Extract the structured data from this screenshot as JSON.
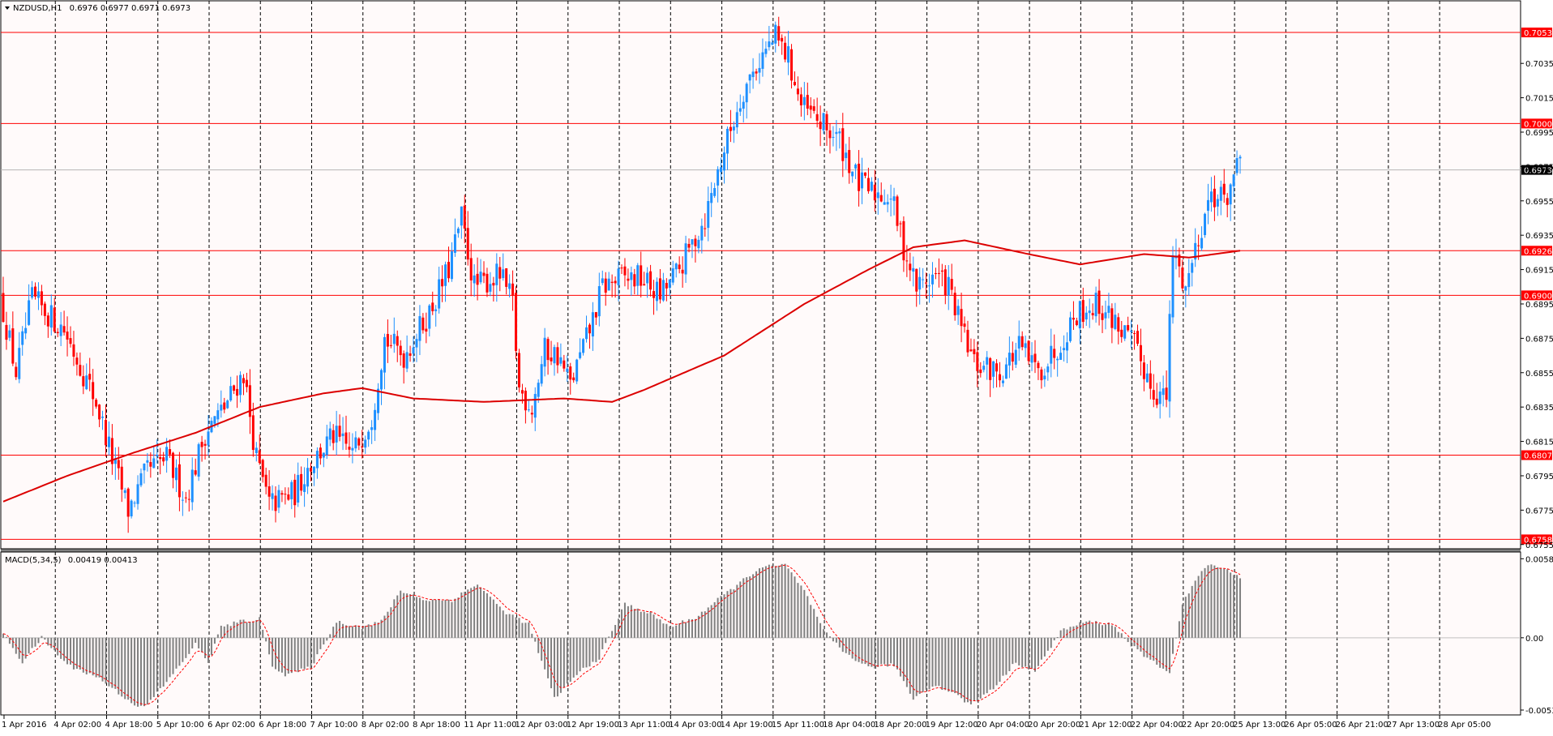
{
  "header": {
    "symbol": "NZDUSD,H1",
    "ohlc": "0.6976 0.6977 0.6971 0.6973"
  },
  "macd_header": {
    "label": "MACD(5,34,5)",
    "values": "0.00419 0.00413"
  },
  "colors": {
    "background": "#fffafa",
    "bull_candle": "#1e90ff",
    "bear_candle": "#ff0000",
    "moving_average": "#dc0000",
    "level_line": "#ff0000",
    "grid": "#000000",
    "histogram": "#808080",
    "signal_line": "#ff0000"
  },
  "chart_data": [
    {
      "type": "candlestick",
      "name": "price",
      "symbol": "NZDUSD",
      "timeframe": "H1",
      "ylim": [
        0.6753,
        0.707
      ],
      "y_ticks": [
        "0.7035",
        "0.7015",
        "0.6995",
        "0.6975",
        "0.6955",
        "0.6935",
        "0.6915",
        "0.6895",
        "0.6875",
        "0.6855",
        "0.6835",
        "0.6815",
        "0.6795",
        "0.6775",
        "0.6755"
      ],
      "x_labels": [
        "1 Apr 2016",
        "4 Apr 02:00",
        "4 Apr 18:00",
        "5 Apr 10:00",
        "6 Apr 02:00",
        "6 Apr 18:00",
        "7 Apr 10:00",
        "8 Apr 02:00",
        "8 Apr 18:00",
        "11 Apr 11:00",
        "12 Apr 03:00",
        "12 Apr 19:00",
        "13 Apr 11:00",
        "14 Apr 03:00",
        "14 Apr 19:00",
        "15 Apr 11:00",
        "18 Apr 04:00",
        "18 Apr 20:00",
        "19 Apr 12:00",
        "20 Apr 04:00",
        "20 Apr 20:00",
        "21 Apr 12:00",
        "22 Apr 04:00",
        "22 Apr 20:00",
        "25 Apr 13:00",
        "26 Apr 05:00",
        "26 Apr 21:00",
        "27 Apr 13:00",
        "28 Apr 05:00"
      ],
      "horizontal_levels": [
        "0.7053",
        "0.7000",
        "0.6926",
        "0.6900",
        "0.6807",
        "0.6758"
      ],
      "current_price": "0.6973",
      "price_path": [
        [
          0,
          0.69
        ],
        [
          5,
          0.6855
        ],
        [
          10,
          0.6898
        ],
        [
          20,
          0.688
        ],
        [
          30,
          0.6838
        ],
        [
          35,
          0.6805
        ],
        [
          40,
          0.6775
        ],
        [
          46,
          0.6798
        ],
        [
          52,
          0.6805
        ],
        [
          58,
          0.6782
        ],
        [
          64,
          0.682
        ],
        [
          70,
          0.6835
        ],
        [
          76,
          0.6855
        ],
        [
          80,
          0.6805
        ],
        [
          84,
          0.6778
        ],
        [
          92,
          0.6785
        ],
        [
          96,
          0.68
        ],
        [
          104,
          0.6818
        ],
        [
          110,
          0.6808
        ],
        [
          116,
          0.683
        ],
        [
          120,
          0.6875
        ],
        [
          126,
          0.6865
        ],
        [
          134,
          0.689
        ],
        [
          140,
          0.6915
        ],
        [
          144,
          0.6945
        ],
        [
          148,
          0.6905
        ],
        [
          156,
          0.6912
        ],
        [
          160,
          0.6895
        ],
        [
          162,
          0.6845
        ],
        [
          166,
          0.6835
        ],
        [
          170,
          0.6868
        ],
        [
          174,
          0.6865
        ],
        [
          178,
          0.6848
        ],
        [
          184,
          0.688
        ],
        [
          188,
          0.6905
        ],
        [
          194,
          0.691
        ],
        [
          200,
          0.691
        ],
        [
          206,
          0.69
        ],
        [
          212,
          0.6915
        ],
        [
          220,
          0.6945
        ],
        [
          226,
          0.6985
        ],
        [
          232,
          0.702
        ],
        [
          238,
          0.704
        ],
        [
          242,
          0.705
        ],
        [
          246,
          0.7038
        ],
        [
          250,
          0.701
        ],
        [
          256,
          0.7
        ],
        [
          262,
          0.699
        ],
        [
          268,
          0.6965
        ],
        [
          272,
          0.696
        ],
        [
          278,
          0.6958
        ],
        [
          282,
          0.6928
        ],
        [
          286,
          0.6905
        ],
        [
          292,
          0.6912
        ],
        [
          296,
          0.6905
        ],
        [
          300,
          0.688
        ],
        [
          304,
          0.686
        ],
        [
          312,
          0.6855
        ],
        [
          318,
          0.687
        ],
        [
          324,
          0.6855
        ],
        [
          330,
          0.687
        ],
        [
          336,
          0.689
        ],
        [
          342,
          0.6895
        ],
        [
          348,
          0.6885
        ],
        [
          354,
          0.687
        ],
        [
          360,
          0.6845
        ],
        [
          364,
          0.684
        ],
        [
          366,
          0.6925
        ],
        [
          370,
          0.6905
        ],
        [
          374,
          0.6935
        ],
        [
          378,
          0.696
        ],
        [
          382,
          0.6955
        ],
        [
          386,
          0.6973
        ]
      ],
      "moving_average": [
        [
          0,
          0.678
        ],
        [
          20,
          0.6795
        ],
        [
          40,
          0.6808
        ],
        [
          60,
          0.682
        ],
        [
          80,
          0.6835
        ],
        [
          100,
          0.6843
        ],
        [
          112,
          0.6846
        ],
        [
          128,
          0.684
        ],
        [
          150,
          0.6838
        ],
        [
          175,
          0.684
        ],
        [
          190,
          0.6838
        ],
        [
          200,
          0.6845
        ],
        [
          225,
          0.6865
        ],
        [
          250,
          0.6895
        ],
        [
          270,
          0.6915
        ],
        [
          284,
          0.6928
        ],
        [
          300,
          0.6932
        ],
        [
          320,
          0.6924
        ],
        [
          336,
          0.6918
        ],
        [
          356,
          0.6924
        ],
        [
          370,
          0.6922
        ],
        [
          386,
          0.6926
        ]
      ]
    },
    {
      "type": "bar",
      "name": "macd",
      "label": "MACD(5,34,5)",
      "ylim": [
        -0.0056,
        0.0063
      ],
      "y_ticks": [
        "0.00586",
        "0.00",
        "-0.00536"
      ],
      "histogram_path": [
        [
          0,
          0.0003
        ],
        [
          6,
          -0.0018
        ],
        [
          12,
          0.0
        ],
        [
          20,
          -0.002
        ],
        [
          30,
          -0.003
        ],
        [
          40,
          -0.0048
        ],
        [
          44,
          -0.0052
        ],
        [
          52,
          -0.003
        ],
        [
          60,
          -0.0005
        ],
        [
          64,
          -0.0018
        ],
        [
          68,
          0.0008
        ],
        [
          74,
          0.0012
        ],
        [
          80,
          0.0014
        ],
        [
          84,
          -0.002
        ],
        [
          88,
          -0.0028
        ],
        [
          96,
          -0.0022
        ],
        [
          104,
          0.0012
        ],
        [
          112,
          0.0008
        ],
        [
          118,
          0.0012
        ],
        [
          124,
          0.0035
        ],
        [
          132,
          0.0028
        ],
        [
          140,
          0.0028
        ],
        [
          148,
          0.004
        ],
        [
          156,
          0.002
        ],
        [
          164,
          0.001
        ],
        [
          172,
          -0.0045
        ],
        [
          180,
          -0.0025
        ],
        [
          186,
          -0.0015
        ],
        [
          194,
          0.0025
        ],
        [
          202,
          0.0018
        ],
        [
          208,
          0.0008
        ],
        [
          216,
          0.0015
        ],
        [
          224,
          0.003
        ],
        [
          236,
          0.0052
        ],
        [
          244,
          0.0054
        ],
        [
          250,
          0.0035
        ],
        [
          256,
          0.0005
        ],
        [
          262,
          -0.001
        ],
        [
          270,
          -0.0022
        ],
        [
          278,
          -0.002
        ],
        [
          284,
          -0.0045
        ],
        [
          290,
          -0.0035
        ],
        [
          296,
          -0.004
        ],
        [
          302,
          -0.005
        ],
        [
          310,
          -0.0035
        ],
        [
          316,
          -0.0018
        ],
        [
          322,
          -0.0025
        ],
        [
          330,
          0.0005
        ],
        [
          338,
          0.0012
        ],
        [
          346,
          0.001
        ],
        [
          354,
          -0.001
        ],
        [
          360,
          -0.002
        ],
        [
          364,
          -0.0025
        ],
        [
          368,
          0.0025
        ],
        [
          374,
          0.005
        ],
        [
          378,
          0.0055
        ],
        [
          386,
          0.0045
        ]
      ],
      "signal_lag": 3
    }
  ]
}
